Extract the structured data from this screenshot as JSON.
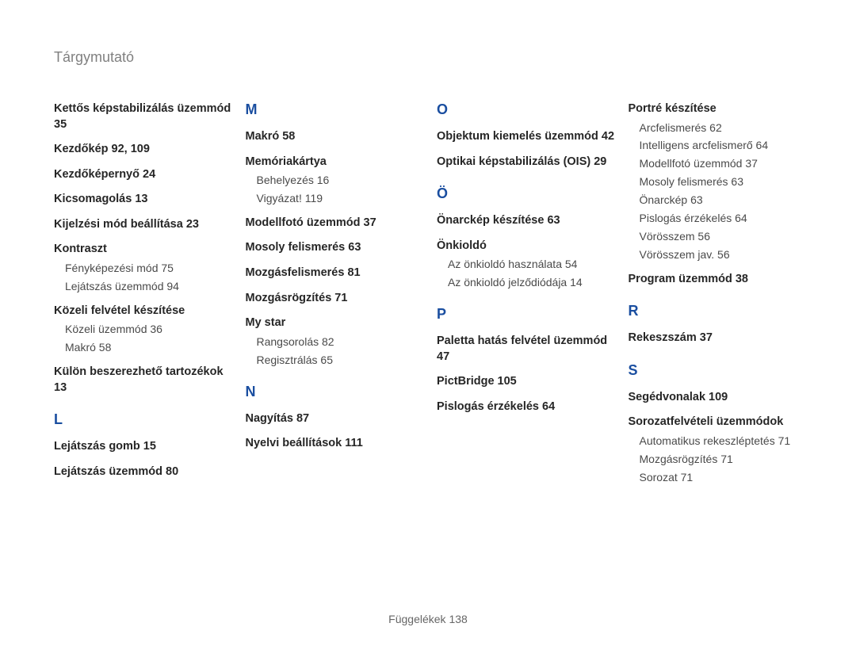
{
  "title": "Tárgymutató",
  "footer": "Függelékek  138",
  "columns": [
    {
      "items": [
        {
          "type": "bold",
          "text": "Kettős képstabilizálás üzemmód  35"
        },
        {
          "type": "bold",
          "text": "Kezdőkép  92, 109"
        },
        {
          "type": "bold",
          "text": "Kezdőképernyő  24"
        },
        {
          "type": "bold",
          "text": "Kicsomagolás  13"
        },
        {
          "type": "bold",
          "text": "Kijelzési mód beállítása  23"
        },
        {
          "type": "bold",
          "text": "Kontraszt"
        },
        {
          "type": "sub",
          "text": "Fényképezési mód  75"
        },
        {
          "type": "sub",
          "text": "Lejátszás üzemmód  94"
        },
        {
          "type": "bold",
          "text": "Közeli felvétel készítése"
        },
        {
          "type": "sub",
          "text": "Közeli üzemmód  36"
        },
        {
          "type": "sub",
          "text": "Makró  58"
        },
        {
          "type": "bold",
          "text": "Külön beszerezhető tartozékok  13"
        },
        {
          "type": "letter",
          "text": "L"
        },
        {
          "type": "bold",
          "text": "Lejátszás gomb  15"
        },
        {
          "type": "bold",
          "text": "Lejátszás üzemmód  80"
        }
      ]
    },
    {
      "items": [
        {
          "type": "letter",
          "text": "M",
          "first": true
        },
        {
          "type": "bold",
          "text": "Makró  58"
        },
        {
          "type": "bold",
          "text": "Memóriakártya"
        },
        {
          "type": "sub",
          "text": "Behelyezés  16"
        },
        {
          "type": "sub",
          "text": "Vigyázat!  119"
        },
        {
          "type": "bold",
          "text": "Modellfotó üzemmód  37"
        },
        {
          "type": "bold",
          "text": "Mosoly felismerés  63"
        },
        {
          "type": "bold",
          "text": "Mozgásfelismerés  81"
        },
        {
          "type": "bold",
          "text": "Mozgásrögzítés  71"
        },
        {
          "type": "bold",
          "text": "My star"
        },
        {
          "type": "sub",
          "text": "Rangsorolás  82"
        },
        {
          "type": "sub",
          "text": "Regisztrálás  65"
        },
        {
          "type": "letter",
          "text": "N"
        },
        {
          "type": "bold",
          "text": "Nagyítás  87"
        },
        {
          "type": "bold",
          "text": "Nyelvi beállítások  111"
        }
      ]
    },
    {
      "items": [
        {
          "type": "letter",
          "text": "O",
          "first": true
        },
        {
          "type": "bold",
          "text": "Objektum kiemelés üzemmód  42"
        },
        {
          "type": "bold",
          "text": "Optikai képstabilizálás (OIS)  29"
        },
        {
          "type": "letter",
          "text": "Ö"
        },
        {
          "type": "bold",
          "text": "Önarckép készítése  63"
        },
        {
          "type": "bold",
          "text": "Önkioldó"
        },
        {
          "type": "sub",
          "text": "Az önkioldó használata  54"
        },
        {
          "type": "sub",
          "text": "Az önkioldó jelződiódája  14"
        },
        {
          "type": "letter",
          "text": "P"
        },
        {
          "type": "bold",
          "text": "Paletta hatás felvétel üzemmód  47"
        },
        {
          "type": "bold",
          "text": "PictBridge  105"
        },
        {
          "type": "bold",
          "text": "Pislogás érzékelés  64"
        }
      ]
    },
    {
      "items": [
        {
          "type": "bold",
          "text": "Portré készítése"
        },
        {
          "type": "sub",
          "text": "Arcfelismerés  62"
        },
        {
          "type": "sub",
          "text": "Intelligens arcfelismerő  64"
        },
        {
          "type": "sub",
          "text": "Modellfotó üzemmód  37"
        },
        {
          "type": "sub",
          "text": "Mosoly felismerés  63"
        },
        {
          "type": "sub",
          "text": "Önarckép  63"
        },
        {
          "type": "sub",
          "text": "Pislogás érzékelés  64"
        },
        {
          "type": "sub",
          "text": "Vörösszem  56"
        },
        {
          "type": "sub",
          "text": "Vörösszem jav.  56"
        },
        {
          "type": "bold",
          "text": "Program üzemmód  38"
        },
        {
          "type": "letter",
          "text": "R"
        },
        {
          "type": "bold",
          "text": "Rekeszszám  37"
        },
        {
          "type": "letter",
          "text": "S"
        },
        {
          "type": "bold",
          "text": "Segédvonalak  109"
        },
        {
          "type": "bold",
          "text": "Sorozatfelvételi üzemmódok"
        },
        {
          "type": "sub",
          "text": "Automatikus rekeszléptetés  71"
        },
        {
          "type": "sub",
          "text": "Mozgásrögzítés  71"
        },
        {
          "type": "sub",
          "text": "Sorozat  71"
        }
      ]
    }
  ]
}
